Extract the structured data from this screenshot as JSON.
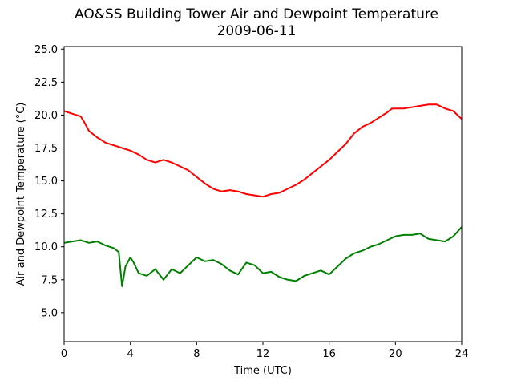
{
  "chart_data": {
    "type": "line",
    "title": "AO&SS Building Tower Air and Dewpoint Temperature",
    "subtitle": "2009-06-11",
    "xlabel": "Time (UTC)",
    "ylabel": "Air and Dewpoint Temperature (°C)",
    "xlim": [
      0,
      24
    ],
    "ylim": [
      2.8,
      25.2
    ],
    "xticks": [
      0,
      4,
      8,
      12,
      16,
      20,
      24
    ],
    "yticks": [
      5.0,
      7.5,
      10.0,
      12.5,
      15.0,
      17.5,
      20.0,
      22.5,
      25.0
    ],
    "grid": false,
    "series": [
      {
        "color": "#ff0000",
        "x": [
          0,
          0.5,
          1.0,
          1.2,
          1.5,
          2,
          2.5,
          3,
          3.5,
          4,
          4.5,
          5,
          5.5,
          6,
          6.5,
          7,
          7.5,
          8,
          8.5,
          9,
          9.5,
          10,
          10.5,
          11,
          11.5,
          12,
          12.5,
          13,
          13.5,
          14,
          14.5,
          15,
          15.5,
          16,
          16.5,
          17,
          17.5,
          18,
          18.5,
          19,
          19.5,
          19.8,
          20,
          20.5,
          21,
          21.5,
          22,
          22.5,
          23,
          23.5,
          24
        ],
        "y": [
          20.3,
          20.1,
          19.9,
          19.5,
          18.8,
          18.3,
          17.9,
          17.7,
          17.5,
          17.3,
          17.0,
          16.6,
          16.4,
          16.6,
          16.4,
          16.1,
          15.8,
          15.3,
          14.8,
          14.4,
          14.2,
          14.3,
          14.2,
          14.0,
          13.9,
          13.8,
          14.0,
          14.1,
          14.4,
          14.7,
          15.1,
          15.6,
          16.1,
          16.6,
          17.2,
          17.8,
          18.6,
          19.1,
          19.4,
          19.8,
          20.2,
          20.5,
          20.5,
          20.5,
          20.6,
          20.7,
          20.8,
          20.8,
          20.5,
          20.3,
          19.7
        ]
      },
      {
        "color": "#008000",
        "x": [
          0,
          0.5,
          1.0,
          1.5,
          2,
          2.5,
          3,
          3.3,
          3.5,
          3.7,
          4,
          4.2,
          4.5,
          5,
          5.5,
          6,
          6.5,
          7,
          7.5,
          8,
          8.5,
          9,
          9.5,
          10,
          10.5,
          11,
          11.5,
          12,
          12.5,
          13,
          13.5,
          14,
          14.5,
          15,
          15.5,
          16,
          16.5,
          17,
          17.5,
          18,
          18.5,
          19,
          19.5,
          20,
          20.5,
          21,
          21.5,
          22,
          22.5,
          23,
          23.5,
          24
        ],
        "y": [
          10.3,
          10.4,
          10.5,
          10.3,
          10.4,
          10.1,
          9.9,
          9.6,
          7.0,
          8.5,
          9.2,
          8.8,
          8.0,
          7.8,
          8.3,
          7.5,
          8.3,
          8.0,
          8.6,
          9.2,
          8.9,
          9.0,
          8.7,
          8.2,
          7.9,
          8.8,
          8.6,
          8.0,
          8.1,
          7.7,
          7.5,
          7.4,
          7.8,
          8.0,
          8.2,
          7.9,
          8.5,
          9.1,
          9.5,
          9.7,
          10.0,
          10.2,
          10.5,
          10.8,
          10.9,
          10.9,
          11.0,
          10.6,
          10.5,
          10.4,
          10.8,
          11.5
        ]
      }
    ]
  }
}
